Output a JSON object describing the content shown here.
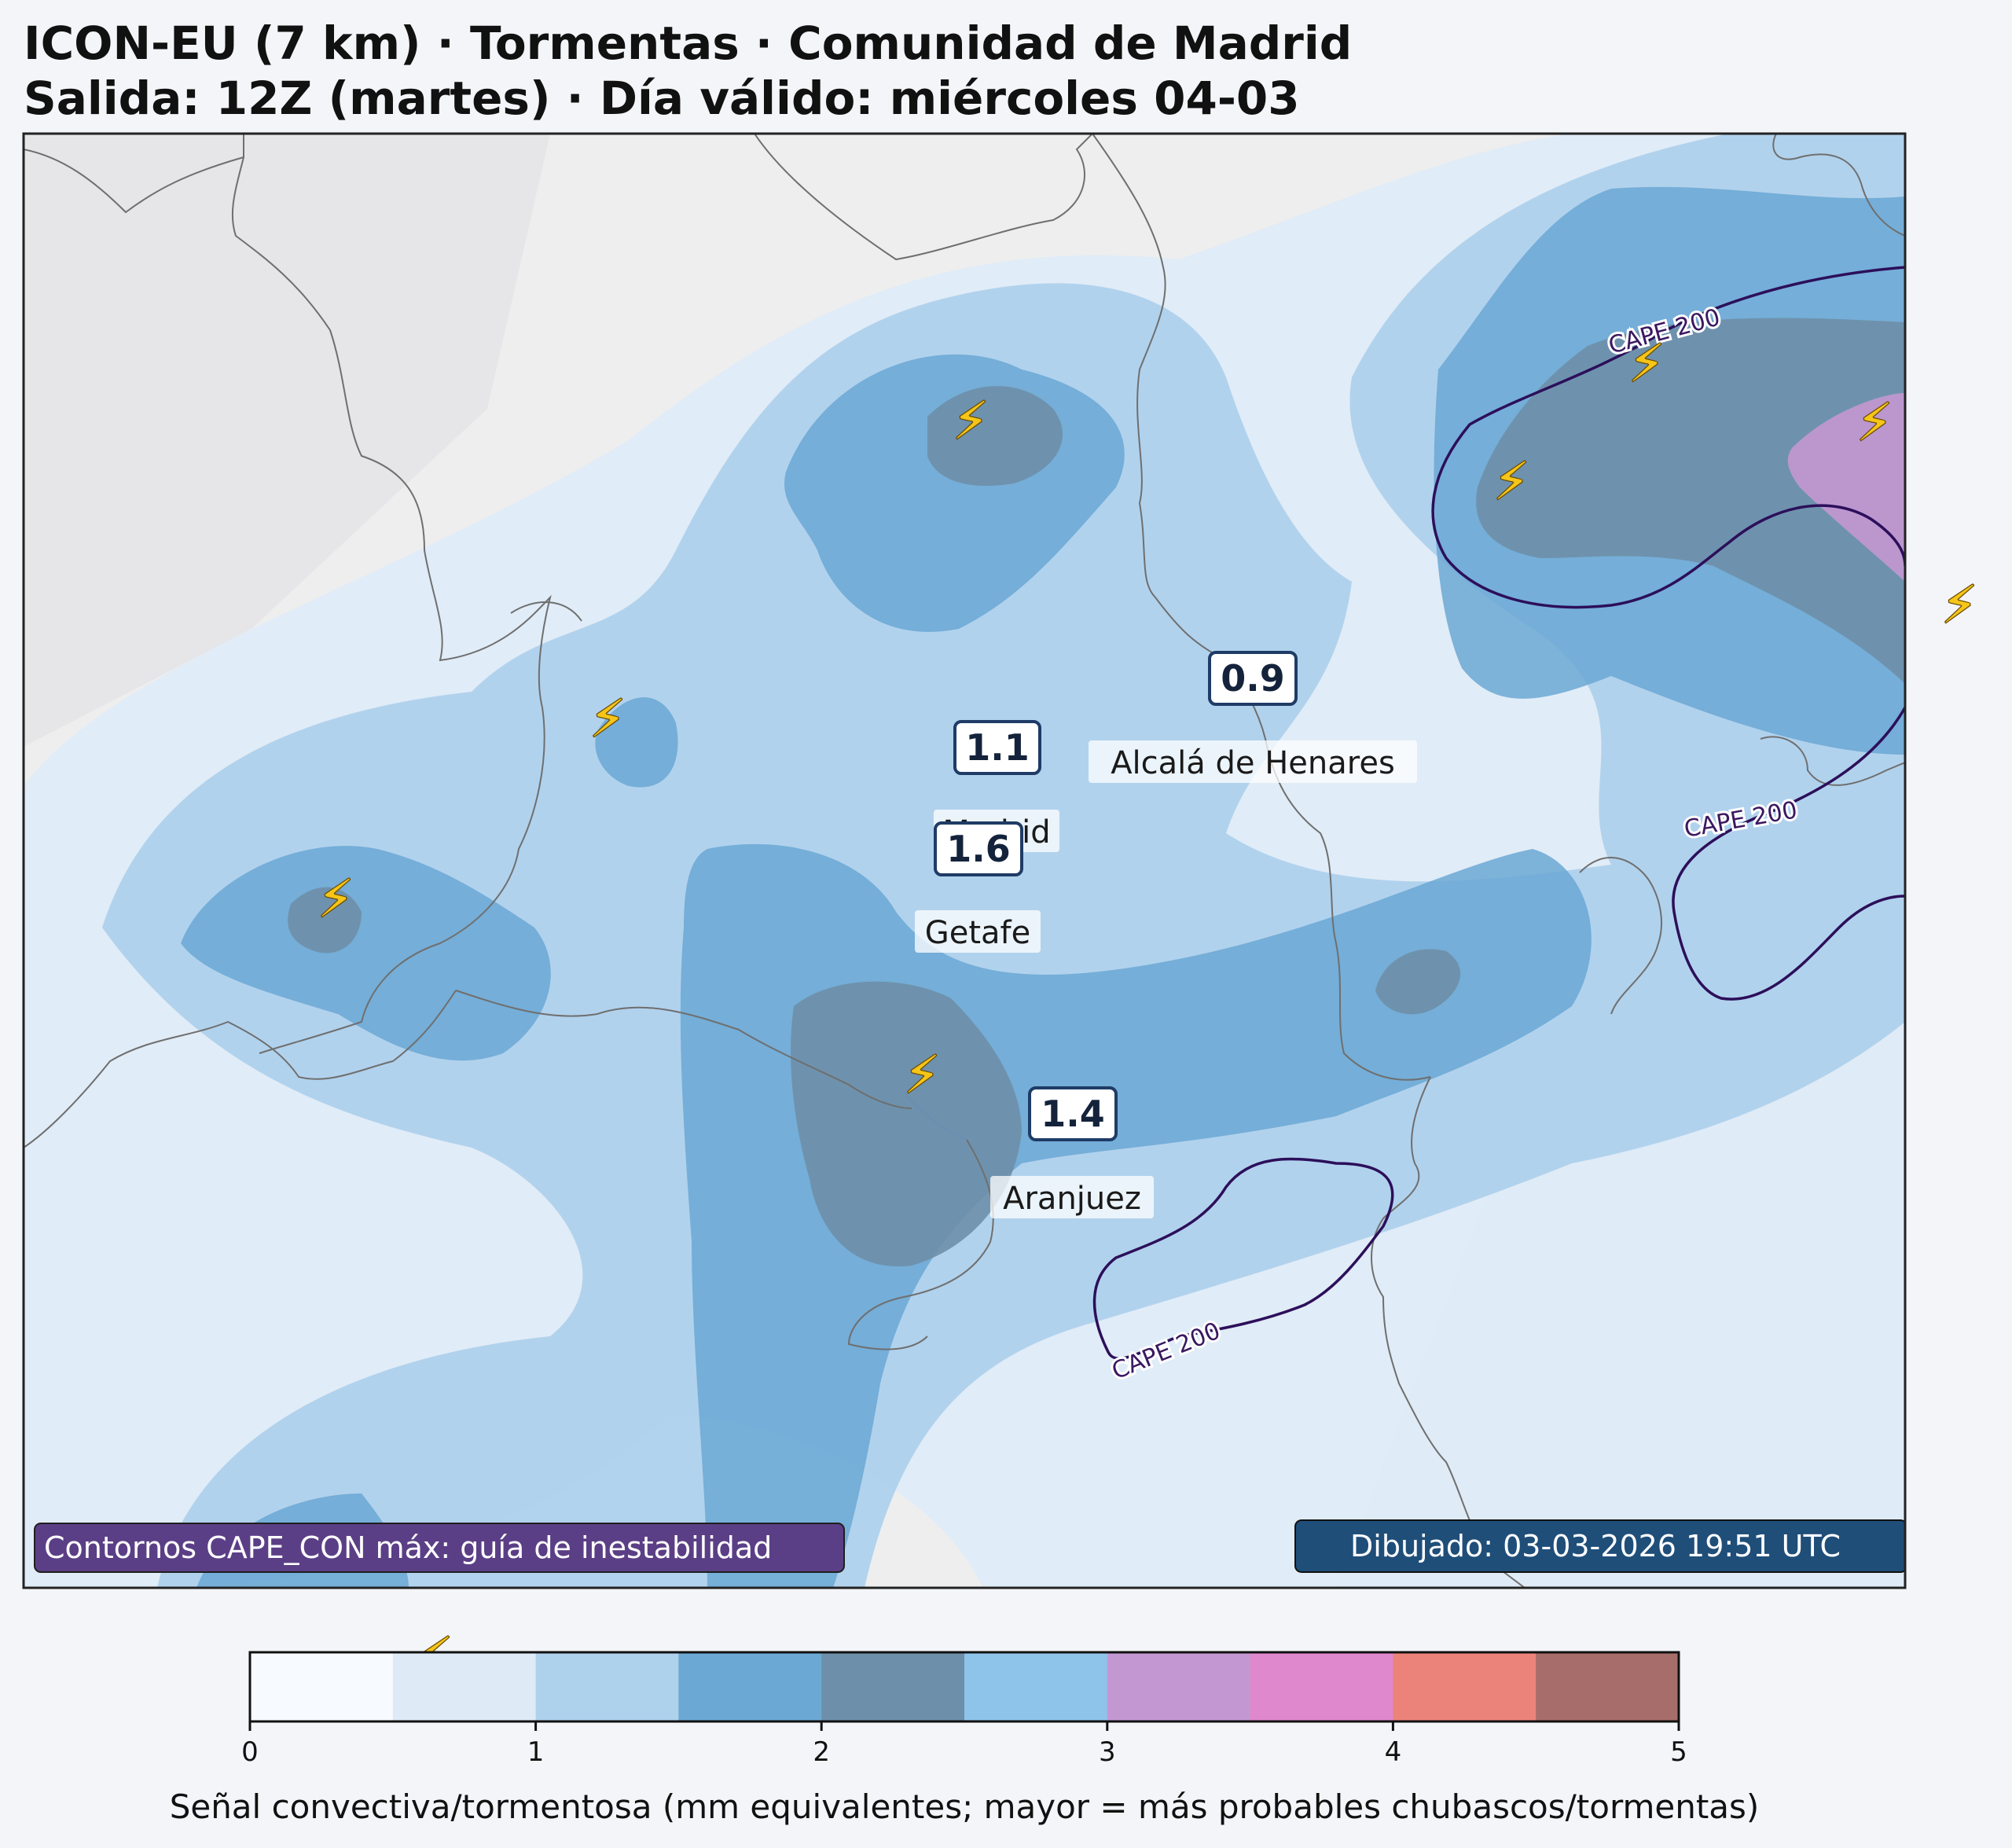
{
  "title": {
    "line1": "ICON-EU (7 km) · Tormentas · Comunidad de Madrid",
    "line2": "Salida: 12Z (martes) · Día válido: miércoles 04-03"
  },
  "cities": [
    {
      "name": "Alcalá de Henares"
    },
    {
      "name": "Madrid"
    },
    {
      "name": "Getafe"
    },
    {
      "name": "Aranjuez"
    }
  ],
  "value_labels": [
    "0.9",
    "1.1",
    "1.6",
    "1.4"
  ],
  "cape_contour_label": "CAPE 200",
  "lightning_icon": "lightning-bolt-icon",
  "lightning_glyph": "⚡",
  "info_boxes": {
    "left": "Contornos CAPE_CON máx: guía de inestabilidad",
    "right": "Dibujado: 03-03-2026 19:51 UTC"
  },
  "colorbar": {
    "label": "Señal convectiva/tormentosa (mm equivalentes; mayor = más probables chubascos/tormentas)",
    "ticks": [
      "0",
      "1",
      "2",
      "3",
      "4",
      "5"
    ],
    "colors": [
      "#f7fbff",
      "#deebf7",
      "#aed1ec",
      "#6ba8d4",
      "#6e8fa9",
      "#8fc4ea",
      "#c398d2",
      "#df88cd",
      "#ec837a",
      "#a76d6b"
    ]
  },
  "colors": {
    "cape_contour": "#2c0f5a",
    "left_box": "#5b3f86",
    "right_box": "#1f4e79"
  }
}
